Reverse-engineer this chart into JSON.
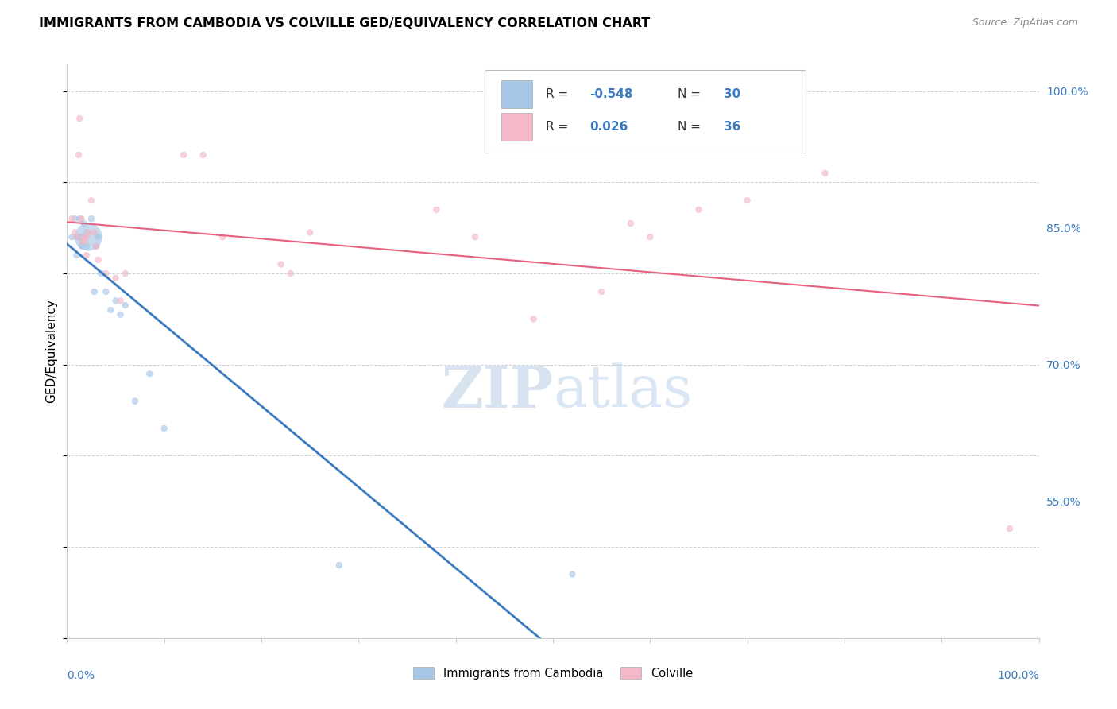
{
  "title": "IMMIGRANTS FROM CAMBODIA VS COLVILLE GED/EQUIVALENCY CORRELATION CHART",
  "source": "Source: ZipAtlas.com",
  "ylabel": "GED/Equivalency",
  "blue_label": "Immigrants from Cambodia",
  "pink_label": "Colville",
  "blue_R": -0.548,
  "blue_N": 30,
  "pink_R": 0.026,
  "pink_N": 36,
  "blue_color": "#a8c8e8",
  "pink_color": "#f4b8c8",
  "blue_line_color": "#3a7abf",
  "pink_line_color": "#e86080",
  "watermark_zip": "ZIP",
  "watermark_atlas": "atlas",
  "blue_x": [
    0.005,
    0.008,
    0.01,
    0.01,
    0.012,
    0.013,
    0.015,
    0.015,
    0.016,
    0.016,
    0.017,
    0.018,
    0.02,
    0.02,
    0.022,
    0.025,
    0.028,
    0.03,
    0.032,
    0.035,
    0.04,
    0.045,
    0.05,
    0.055,
    0.06,
    0.07,
    0.085,
    0.1,
    0.28,
    0.52
  ],
  "blue_y": [
    0.84,
    0.86,
    0.84,
    0.82,
    0.84,
    0.86,
    0.84,
    0.83,
    0.84,
    0.835,
    0.855,
    0.84,
    0.845,
    0.83,
    0.84,
    0.86,
    0.78,
    0.83,
    0.84,
    0.8,
    0.78,
    0.76,
    0.77,
    0.755,
    0.765,
    0.66,
    0.69,
    0.63,
    0.48,
    0.47
  ],
  "blue_sizes": [
    30,
    30,
    30,
    30,
    30,
    30,
    30,
    30,
    30,
    30,
    30,
    30,
    30,
    30,
    600,
    30,
    30,
    30,
    30,
    30,
    30,
    30,
    30,
    30,
    30,
    30,
    30,
    30,
    30,
    30
  ],
  "pink_x": [
    0.005,
    0.008,
    0.01,
    0.012,
    0.013,
    0.015,
    0.016,
    0.017,
    0.018,
    0.02,
    0.02,
    0.022,
    0.025,
    0.028,
    0.03,
    0.032,
    0.04,
    0.05,
    0.055,
    0.06,
    0.12,
    0.14,
    0.16,
    0.22,
    0.23,
    0.25,
    0.38,
    0.42,
    0.55,
    0.58,
    0.6,
    0.65,
    0.7,
    0.78,
    0.97,
    0.48
  ],
  "pink_y": [
    0.86,
    0.845,
    0.84,
    0.93,
    0.97,
    0.86,
    0.835,
    0.84,
    0.835,
    0.84,
    0.82,
    0.845,
    0.88,
    0.845,
    0.83,
    0.815,
    0.8,
    0.795,
    0.77,
    0.8,
    0.93,
    0.93,
    0.84,
    0.81,
    0.8,
    0.845,
    0.87,
    0.84,
    0.78,
    0.855,
    0.84,
    0.87,
    0.88,
    0.91,
    0.52,
    0.75
  ],
  "pink_sizes": [
    30,
    30,
    30,
    30,
    30,
    30,
    30,
    30,
    30,
    30,
    30,
    30,
    30,
    30,
    30,
    30,
    30,
    30,
    30,
    30,
    30,
    30,
    30,
    30,
    30,
    30,
    30,
    30,
    30,
    30,
    30,
    30,
    30,
    30,
    30,
    30
  ],
  "xlim": [
    0.0,
    1.0
  ],
  "ylim": [
    0.4,
    1.03
  ],
  "yticks": [
    0.55,
    0.7,
    0.85,
    1.0
  ],
  "ytick_labels_right": [
    "55.0%",
    "70.0%",
    "85.0%",
    "100.0%"
  ],
  "grid_color": "#cccccc",
  "spine_color": "#cccccc"
}
